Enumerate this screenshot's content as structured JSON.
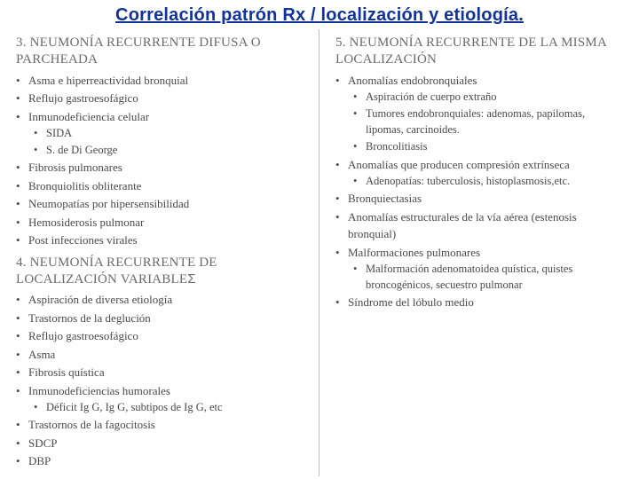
{
  "title_text": "Correlación patrón Rx / localización y etiología.",
  "title_color": "#12339a",
  "heading_color": "#6b6b6b",
  "body_color": "#4a4a4a",
  "background_color": "#ffffff",
  "divider_color": "#bcbcbc",
  "left": {
    "sec3": {
      "num": "3.",
      "label": "NEUMONÍA RECURRENTE DIFUSA O PARCHEADA",
      "items": [
        {
          "t": "Asma e hiperreactividad bronquial"
        },
        {
          "t": "Reflujo gastroesofágico"
        },
        {
          "t": "Inmunodeficiencia celular",
          "sub": [
            {
              "t": "SIDA"
            },
            {
              "t": "S. de Di George"
            }
          ]
        },
        {
          "t": "Fibrosis pulmonares"
        },
        {
          "t": "Bronquiolitis obliterante"
        },
        {
          "t": "Neumopatías por hipersensibilidad"
        },
        {
          "t": "Hemosiderosis pulmonar"
        },
        {
          "t": "Post infecciones virales"
        }
      ]
    },
    "sec4": {
      "num": "4.",
      "label_a": "NEUMONÍA RECURRENTE DE LOCALIZACIÓN VARIABLE",
      "label_sigma": "Σ",
      "items": [
        {
          "t": "Aspiración de diversa etiología"
        },
        {
          "t": "Trastornos de la deglución"
        },
        {
          "t": "Reflujo gastroesofágico"
        },
        {
          "t": "Asma"
        },
        {
          "t": "Fibrosis quística"
        },
        {
          "t": "Inmunodeficiencias humorales",
          "sub": [
            {
              "t": "Déficit Ig G, Ig G, subtipos de Ig G, etc"
            }
          ]
        },
        {
          "t": "Trastornos de la fagocitosis"
        },
        {
          "t": "SDCP"
        },
        {
          "t": "DBP"
        }
      ]
    }
  },
  "right": {
    "sec5": {
      "num": "5.",
      "label": "NEUMONÍA RECURRENTE DE LA MISMA LOCALIZACIÓN",
      "items": [
        {
          "t": "Anomalías endobronquiales",
          "sub": [
            {
              "t": "Aspiración de cuerpo extraño"
            },
            {
              "t": "Tumores endobronquiales: adenomas, papilomas, lipomas, carcinoides."
            },
            {
              "t": "Broncolitiasis"
            }
          ]
        },
        {
          "t": "Anomalías que producen compresión extrínseca",
          "sub": [
            {
              "t": "Adenopatías: tuberculosis, histoplasmosis,etc."
            }
          ]
        },
        {
          "t": "Bronquiectasias"
        },
        {
          "t": "Anomalías estructurales de la vía aérea (estenosis bronquial)"
        },
        {
          "t": "Malformaciones pulmonares",
          "sub": [
            {
              "t": "Malformación adenomatoidea quística, quistes broncogénicos, secuestro pulmonar"
            }
          ]
        },
        {
          "t": "Síndrome del lóbulo medio"
        }
      ]
    }
  }
}
